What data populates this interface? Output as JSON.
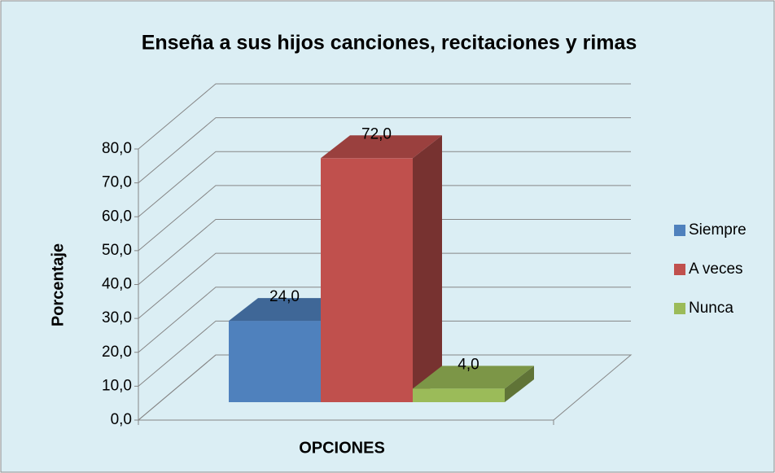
{
  "chart_data": {
    "type": "bar3d",
    "title": "Enseña a sus hijos canciones, recitaciones y rimas",
    "ylabel": "Porcentaje",
    "xlabel": "OPCIONES",
    "categories": [
      "Siempre",
      "A veces",
      "Nunca"
    ],
    "values": [
      24,
      72,
      4
    ],
    "value_labels": [
      "24,0",
      "72,0",
      "4,0"
    ],
    "colors": [
      "#4f81bd",
      "#c0504d",
      "#9bbb59"
    ],
    "ylim": [
      0,
      80
    ],
    "yticks": [
      {
        "value": 0,
        "label": "0,0"
      },
      {
        "value": 10,
        "label": "10,0"
      },
      {
        "value": 20,
        "label": "20,0"
      },
      {
        "value": 30,
        "label": "30,0"
      },
      {
        "value": 40,
        "label": "40,0"
      },
      {
        "value": 50,
        "label": "50,0"
      },
      {
        "value": 60,
        "label": "60,0"
      },
      {
        "value": 70,
        "label": "70,0"
      },
      {
        "value": 80,
        "label": "80,0"
      }
    ],
    "grid": true,
    "legend": "right"
  }
}
